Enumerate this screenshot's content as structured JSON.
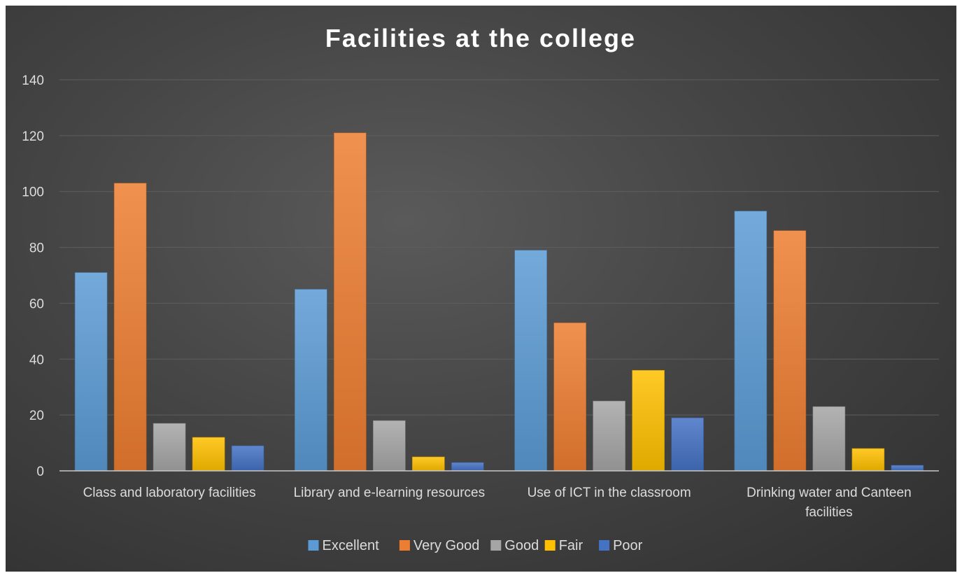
{
  "chart_data": {
    "type": "bar",
    "title": "Facilities at the college",
    "xlabel": "",
    "ylabel": "",
    "ylim": [
      0,
      140
    ],
    "y_ticks": [
      0,
      20,
      40,
      60,
      80,
      100,
      120,
      140
    ],
    "grid": true,
    "legend_position": "bottom",
    "categories": [
      "Class and laboratory facilities",
      "Library and e-learning resources",
      "Use of ICT in the classroom",
      "Drinking water and Canteen facilities"
    ],
    "series": [
      {
        "name": "Excellent",
        "color": "#5B9BD5",
        "values": [
          71,
          65,
          79,
          93
        ]
      },
      {
        "name": "Very Good",
        "color": "#ED7D31",
        "values": [
          103,
          121,
          53,
          86
        ]
      },
      {
        "name": "Good",
        "color": "#A5A5A5",
        "values": [
          17,
          18,
          25,
          23
        ]
      },
      {
        "name": "Fair",
        "color": "#FFC000",
        "values": [
          12,
          5,
          36,
          8
        ]
      },
      {
        "name": "Poor",
        "color": "#4472C4",
        "values": [
          9,
          3,
          19,
          2
        ]
      }
    ]
  }
}
